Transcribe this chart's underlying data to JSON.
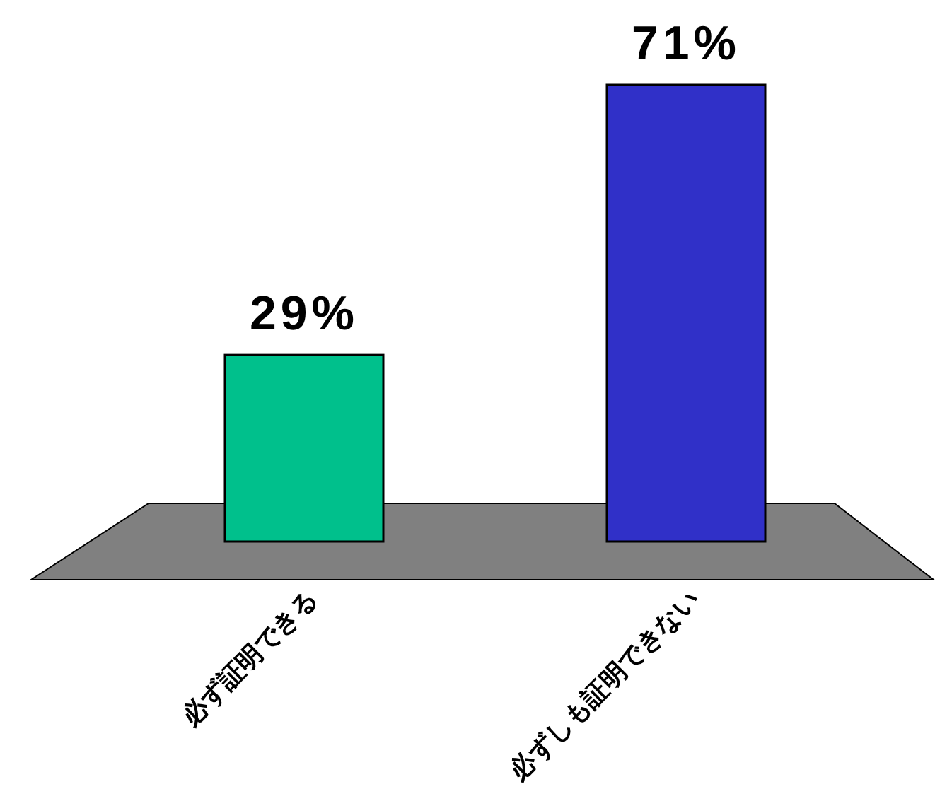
{
  "chart_data": {
    "type": "bar",
    "categories": [
      "必ず証明できる",
      "必ずしも証明できない"
    ],
    "values": [
      29,
      71
    ],
    "colors": [
      "#00c08c",
      "#3030c8"
    ],
    "value_labels": [
      "29%",
      "71%"
    ]
  }
}
